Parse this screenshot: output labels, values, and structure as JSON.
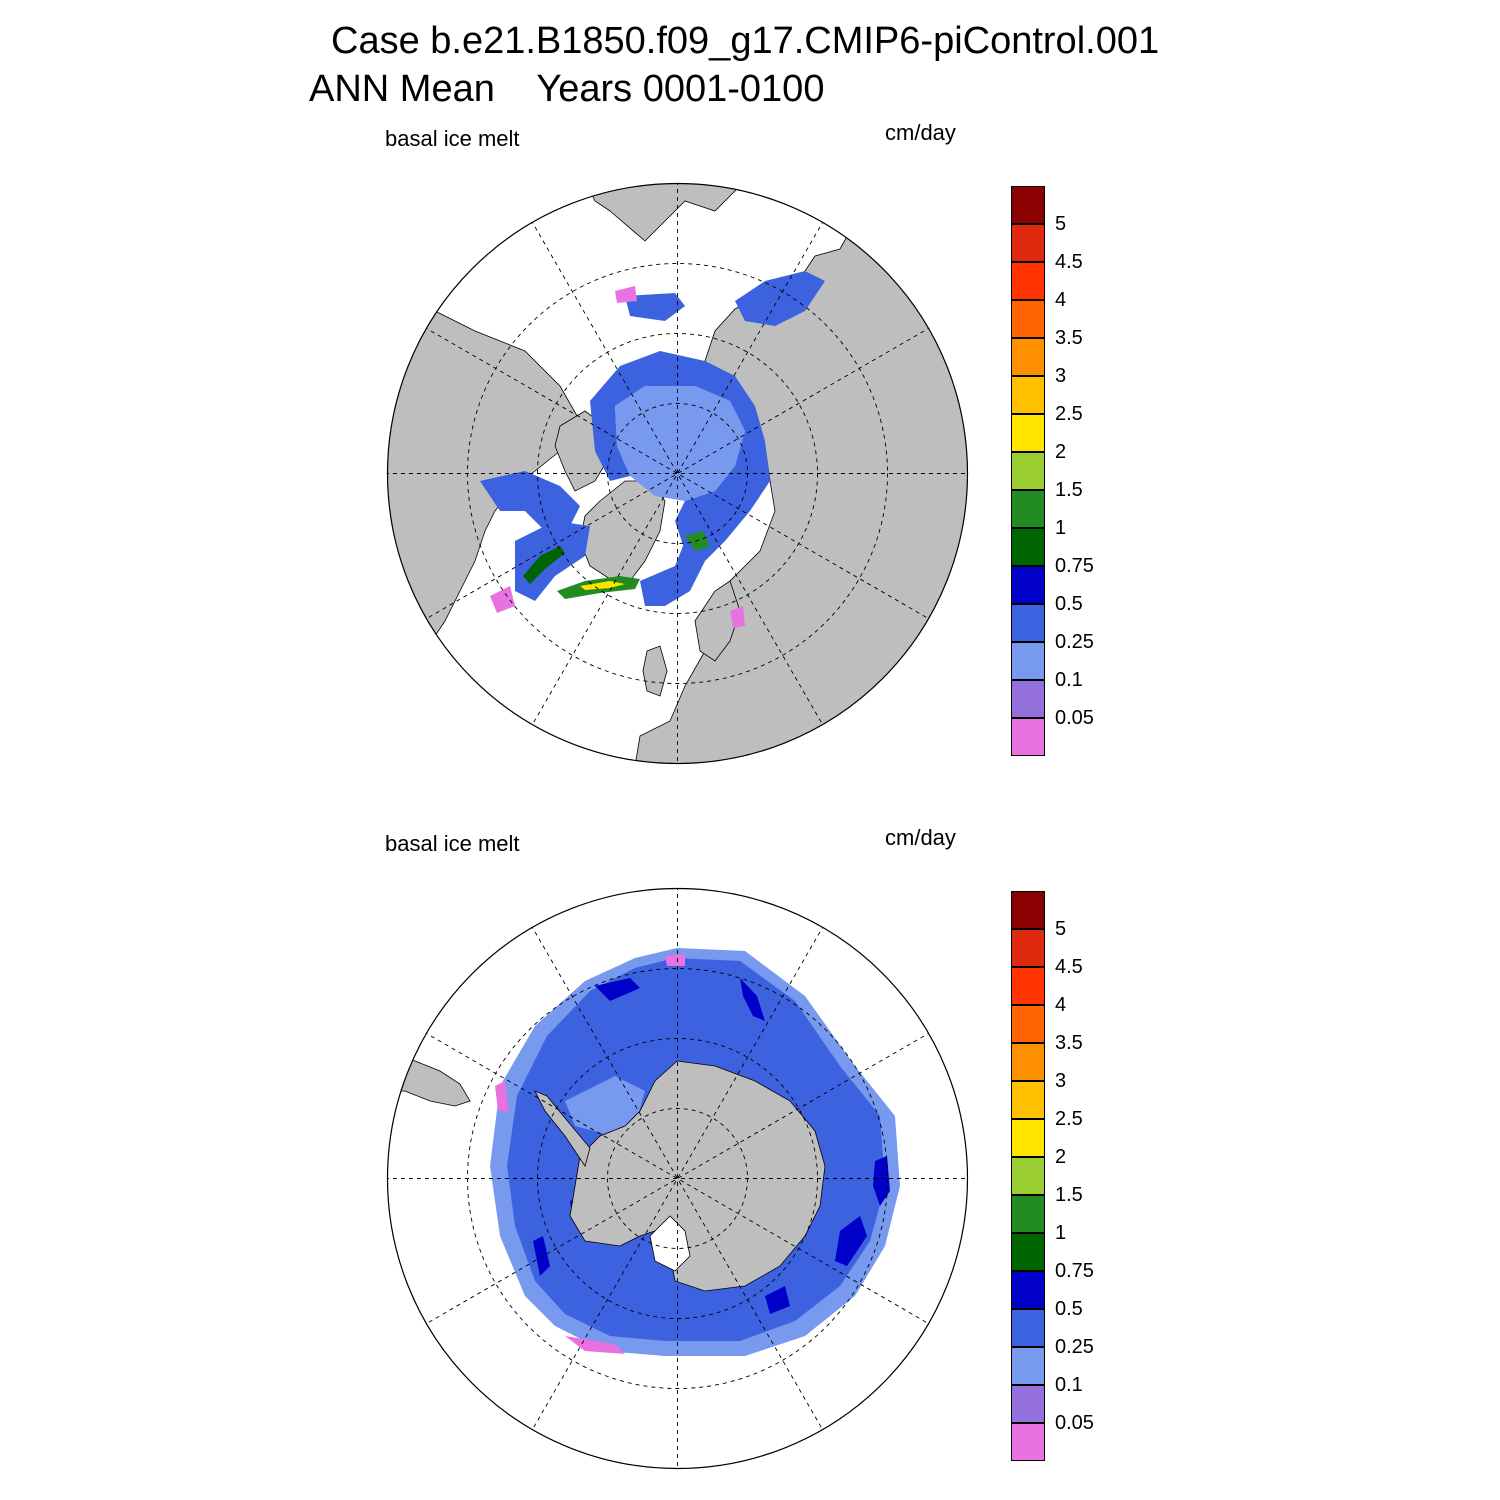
{
  "title": {
    "line1": "Case b.e21.B1850.f09_g17.CMIP6-piControl.001",
    "line2": "ANN Mean    Years 0001-0100"
  },
  "panels": [
    {
      "hemisphere": "north",
      "left_label": "basal ice melt",
      "right_label": "cm/day"
    },
    {
      "hemisphere": "south",
      "left_label": "basal ice melt",
      "right_label": "cm/day"
    }
  ],
  "colorbar": {
    "levels": [
      "0.05",
      "0.1",
      "0.25",
      "0.5",
      "0.75",
      "1",
      "1.5",
      "2",
      "2.5",
      "3",
      "3.5",
      "4",
      "4.5",
      "5"
    ],
    "colors": [
      "#e872e0",
      "#9370db",
      "#7799ee",
      "#3d62e0",
      "#0000c8",
      "#006400",
      "#228b22",
      "#9acd32",
      "#ffe400",
      "#ffc000",
      "#ff9000",
      "#ff6400",
      "#ff3200",
      "#e02a10",
      "#8b0000"
    ]
  },
  "land_color": "#bebebe",
  "icons": [
    "polar-stereographic-map",
    "color-scale"
  ]
}
